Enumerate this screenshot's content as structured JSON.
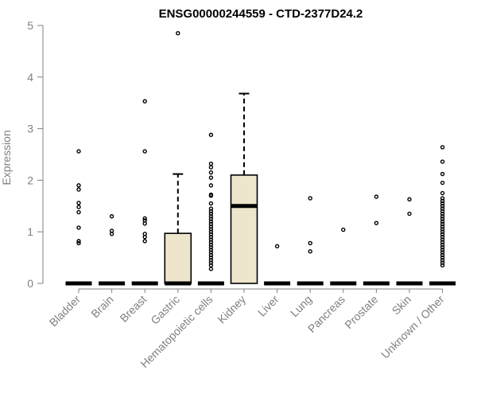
{
  "chart_data": {
    "type": "boxplot",
    "title": "ENSG00000244559 - CTD-2377D24.2",
    "xlabel": "",
    "ylabel": "Expression",
    "ylim": [
      0,
      5
    ],
    "yticks": [
      "0",
      "1",
      "2",
      "3",
      "4",
      "5"
    ],
    "grid": false,
    "legend": "none",
    "colors": {
      "box_fill": "#ede6cc",
      "stroke": "#000000",
      "axis": "#808080"
    },
    "categories": [
      "Bladder",
      "Brain",
      "Breast",
      "Gastric",
      "Hematopoietic cells",
      "Kidney",
      "Liver",
      "Lung",
      "Pancreas",
      "Prostate",
      "Skin",
      "Unknown / Other"
    ],
    "boxes": [
      {
        "name": "Bladder",
        "min": 0,
        "q1": 0,
        "median": 0,
        "q3": 0,
        "max": 0,
        "outliers": [
          0.78,
          0.82,
          1.08,
          1.38,
          1.48,
          1.56,
          1.82,
          1.9,
          2.56
        ]
      },
      {
        "name": "Brain",
        "min": 0,
        "q1": 0,
        "median": 0,
        "q3": 0,
        "max": 0,
        "outliers": [
          0.96,
          1.02,
          1.3
        ]
      },
      {
        "name": "Breast",
        "min": 0,
        "q1": 0,
        "median": 0,
        "q3": 0,
        "max": 0,
        "outliers": [
          0.82,
          0.9,
          0.96,
          1.16,
          1.22,
          1.26,
          2.56,
          3.53
        ]
      },
      {
        "name": "Gastric",
        "min": 0,
        "q1": 0,
        "median": 0,
        "q3": 0.97,
        "max": 2.12,
        "outliers": [
          4.85
        ]
      },
      {
        "name": "Hematopoietic cells",
        "min": 0,
        "q1": 0,
        "median": 0,
        "q3": 0,
        "max": 0,
        "outliers": [
          0.28,
          0.35,
          0.4,
          0.45,
          0.5,
          0.55,
          0.6,
          0.65,
          0.7,
          0.75,
          0.8,
          0.85,
          0.9,
          0.95,
          1.0,
          1.05,
          1.1,
          1.15,
          1.2,
          1.25,
          1.3,
          1.35,
          1.4,
          1.45,
          1.55,
          1.7,
          1.72,
          1.9,
          2.05,
          2.15,
          2.25,
          2.32,
          2.88
        ]
      },
      {
        "name": "Kidney",
        "min": 0,
        "q1": 0,
        "median": 1.5,
        "q3": 2.1,
        "max": 3.68,
        "outliers": []
      },
      {
        "name": "Liver",
        "min": 0,
        "q1": 0,
        "median": 0,
        "q3": 0,
        "max": 0,
        "outliers": [
          0.72
        ]
      },
      {
        "name": "Lung",
        "min": 0,
        "q1": 0,
        "median": 0,
        "q3": 0,
        "max": 0,
        "outliers": [
          0.62,
          0.78,
          1.65
        ]
      },
      {
        "name": "Pancreas",
        "min": 0,
        "q1": 0,
        "median": 0,
        "q3": 0,
        "max": 0,
        "outliers": [
          1.04
        ]
      },
      {
        "name": "Prostate",
        "min": 0,
        "q1": 0,
        "median": 0,
        "q3": 0,
        "max": 0,
        "outliers": [
          1.17,
          1.68
        ]
      },
      {
        "name": "Skin",
        "min": 0,
        "q1": 0,
        "median": 0,
        "q3": 0,
        "max": 0,
        "outliers": [
          1.35,
          1.63
        ]
      },
      {
        "name": "Unknown / Other",
        "min": 0,
        "q1": 0,
        "median": 0,
        "q3": 0,
        "max": 0,
        "outliers": [
          0.35,
          0.4,
          0.45,
          0.5,
          0.55,
          0.6,
          0.65,
          0.7,
          0.75,
          0.8,
          0.85,
          0.9,
          0.95,
          1.0,
          1.05,
          1.1,
          1.15,
          1.2,
          1.25,
          1.3,
          1.35,
          1.4,
          1.45,
          1.5,
          1.55,
          1.6,
          1.65,
          1.75,
          1.95,
          2.12,
          2.36,
          2.64
        ]
      }
    ]
  }
}
